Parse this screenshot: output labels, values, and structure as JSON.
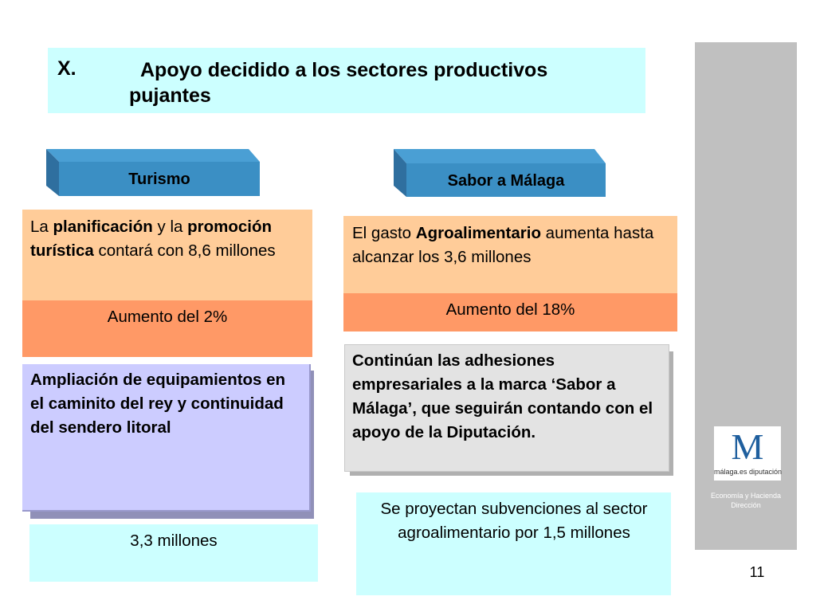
{
  "title": {
    "number": "X.",
    "text": "Apoyo decidido a los sectores productivos pujantes"
  },
  "tabs": {
    "turismo": "Turismo",
    "sabor": "Sabor a Málaga"
  },
  "left": {
    "plan_parts": [
      "La ",
      "planificación",
      " y la ",
      "promoción turística",
      " contará con 8,6 millones"
    ],
    "increase": "Aumento del 2%",
    "ampliacion": "Ampliación de equipamientos en el caminito del rey y continuidad del sendero litoral",
    "amount": "3,3 millones"
  },
  "right": {
    "gasto_parts": [
      "El gasto ",
      "Agroalimentario",
      " aumenta hasta alcanzar los 3,6 millones"
    ],
    "increase": "Aumento del 18%",
    "adhesiones": "Continúan las adhesiones empresariales a la marca ‘Sabor a Málaga’, que seguirán contando con el apoyo de la Diputación.",
    "subvenciones": "Se proyectan subvenciones al sector agroalimentario por 1,5 millones"
  },
  "sidebar": {
    "logo_letter": "M",
    "logo_text": "málaga.es diputación",
    "department": "Economía y Hacienda Dirección"
  },
  "page_number": "11",
  "colors": {
    "title_bg": "#ccffff",
    "tab_blue": "#3b8fc4",
    "peach": "#ffcc99",
    "orange": "#ff9966",
    "lavender": "#ccccff",
    "gray_box": "#e3e3e3",
    "sidebar": "#c0c0c0"
  }
}
